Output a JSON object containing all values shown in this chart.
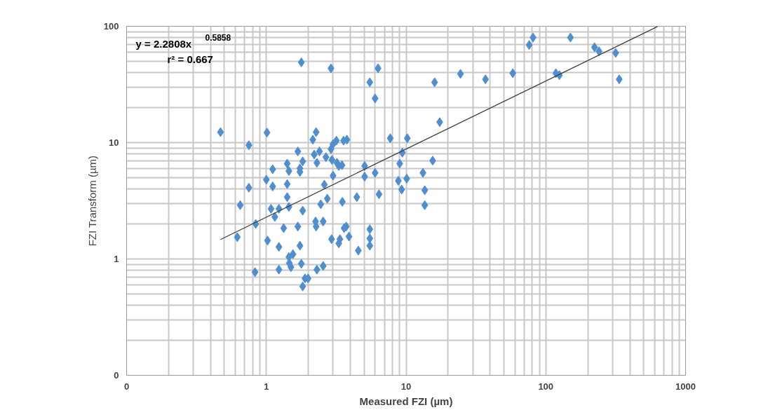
{
  "chart_data": {
    "type": "scatter",
    "xlabel": "Measured FZI (µm)",
    "ylabel": "FZI Transform (µm)",
    "log": "xy",
    "grid": true,
    "xlim": [
      0.1,
      1000
    ],
    "ylim": [
      0.1,
      100
    ],
    "xticks": [
      {
        "value": 0.1,
        "label": "0"
      },
      1,
      10,
      100,
      1000
    ],
    "yticks": [
      {
        "value": 0.1,
        "label": "0"
      },
      1,
      10,
      100
    ],
    "annotations": [
      "y = 2.2808x$^{0.5858}$",
      "r² = 0.667"
    ],
    "series": [
      {
        "type": "scatter",
        "marker": "diamond",
        "color": "#4f8fcf",
        "x": [
          0.47,
          0.65,
          0.62,
          0.75,
          0.75,
          0.83,
          0.84,
          1.01,
          1.0,
          1.02,
          1.11,
          1.11,
          1.08,
          1.15,
          1.23,
          1.23,
          1.23,
          1.33,
          1.41,
          1.45,
          1.41,
          1.41,
          1.45,
          1.45,
          1.46,
          1.5,
          1.55,
          1.68,
          1.74,
          1.74,
          1.68,
          1.74,
          1.78,
          1.78,
          1.82,
          1.82,
          1.89,
          1.82,
          1.99,
          2.15,
          2.2,
          2.27,
          2.3,
          2.25,
          2.27,
          2.3,
          2.4,
          2.45,
          2.55,
          2.55,
          2.6,
          2.67,
          2.73,
          2.9,
          2.9,
          2.95,
          3.0,
          3.0,
          2.93,
          3.17,
          3.2,
          3.3,
          3.3,
          3.36,
          3.48,
          3.5,
          3.57,
          3.6,
          3.73,
          3.77,
          3.9,
          4.44,
          4.55,
          5.05,
          5.05,
          5.5,
          5.5,
          5.5,
          5.5,
          6.0,
          6.0,
          6.3,
          6.4,
          7.7,
          9.0,
          8.8,
          9.3,
          9.4,
          10.2,
          10.1,
          13.2,
          13.6,
          13.6,
          15.5,
          16.0,
          17.4,
          24.5,
          37,
          58,
          76,
          81,
          118,
          125,
          150,
          223,
          240,
          316,
          335
        ],
        "values": [
          12.3,
          2.9,
          1.54,
          9.5,
          4.1,
          0.77,
          2.0,
          12.2,
          4.8,
          1.44,
          5.9,
          4.2,
          2.7,
          2.3,
          2.7,
          1.27,
          0.81,
          1.84,
          6.6,
          5.7,
          4.4,
          3.4,
          2.8,
          1.04,
          0.92,
          0.85,
          1.1,
          8.4,
          6.0,
          5.6,
          1.9,
          1.3,
          0.91,
          49,
          6.9,
          2.6,
          0.68,
          0.58,
          0.68,
          10.6,
          7.9,
          12.3,
          6.7,
          2.1,
          1.9,
          0.81,
          8.4,
          2.95,
          2.1,
          0.87,
          4.35,
          7.5,
          3.3,
          43.5,
          8.8,
          7.1,
          9.7,
          5.2,
          1.48,
          10.4,
          6.7,
          6.3,
          1.36,
          1.48,
          6.4,
          3.1,
          10.4,
          1.84,
          1.9,
          10.6,
          1.56,
          3.4,
          1.18,
          6.3,
          5.1,
          1.8,
          1.3,
          1.5,
          33,
          24,
          5.5,
          43.5,
          3.6,
          10.9,
          6.6,
          4.7,
          3.95,
          8.2,
          10.9,
          4.9,
          5.5,
          3.9,
          2.9,
          7.0,
          33,
          15,
          39,
          35,
          39.5,
          69,
          80,
          39.5,
          38,
          80,
          66,
          61,
          59,
          35
        ]
      },
      {
        "type": "line",
        "color": "#404040",
        "x": [
          0.47,
          630
        ],
        "values": [
          1.47,
          99.4
        ]
      }
    ]
  }
}
